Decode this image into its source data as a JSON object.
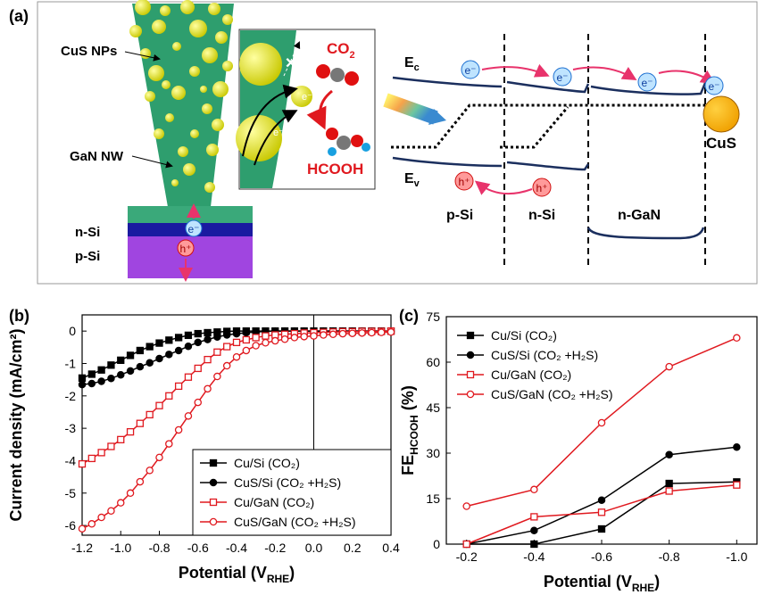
{
  "panel_a": {
    "label": "(a)",
    "nps": "CuS NPs",
    "nw": "GaN NW",
    "n_si": "n-Si",
    "p_si": "p-Si",
    "reactant": "CO",
    "reactant_sub": "2",
    "product": "HCOOH",
    "ec": "E",
    "ec_sub": "c",
    "ev": "E",
    "ev_sub": "v",
    "regions": [
      "p-Si",
      "n-Si",
      "n-GaN"
    ],
    "cocatalyst": "CuS",
    "electron": "e⁻",
    "hole": "h⁺"
  },
  "chart_data": [
    {
      "type": "line",
      "panel_label": "(b)",
      "xlabel": "Potential (V",
      "xlabel_sub": "RHE",
      "xlabel_end": ")",
      "ylabel": "Current density (mA/cm²)",
      "x": [
        -1.2,
        -1.15,
        -1.1,
        -1.05,
        -1.0,
        -0.95,
        -0.9,
        -0.85,
        -0.8,
        -0.75,
        -0.7,
        -0.65,
        -0.6,
        -0.55,
        -0.5,
        -0.45,
        -0.4,
        -0.35,
        -0.3,
        -0.25,
        -0.2,
        -0.15,
        -0.1,
        -0.05,
        0,
        0.05,
        0.1,
        0.15,
        0.2,
        0.25,
        0.3,
        0.35,
        0.4
      ],
      "xlim": [
        -1.2,
        0.4
      ],
      "xticks": [
        -1.2,
        {
          "value": -1,
          "label": "-1.0"
        },
        -0.8,
        -0.6,
        -0.4,
        -0.2,
        {
          "value": 0,
          "label": "0.0"
        },
        0.2,
        0.4
      ],
      "ylim": [
        -6.3,
        0.5
      ],
      "yticks": [
        -6,
        -5,
        -4,
        -3,
        -2,
        -1,
        0
      ],
      "vline": 0,
      "legend": "lower right",
      "legend_box": true,
      "series": [
        {
          "name": "Cu/Si (CO₂)",
          "color": "#000000",
          "marker": "square",
          "filled": true,
          "values": [
            -1.45,
            -1.33,
            -1.2,
            -1.05,
            -0.9,
            -0.75,
            -0.6,
            -0.48,
            -0.37,
            -0.28,
            -0.2,
            -0.13,
            -0.08,
            -0.05,
            -0.03,
            -0.01,
            0,
            0,
            0,
            0,
            0,
            0,
            0,
            0,
            0,
            0,
            0,
            0,
            0,
            0,
            0,
            0,
            0
          ]
        },
        {
          "name": "CuS/Si (CO₂ +H₂S)",
          "color": "#000000",
          "marker": "circle",
          "filled": true,
          "values": [
            -1.65,
            -1.62,
            -1.55,
            -1.46,
            -1.35,
            -1.23,
            -1.1,
            -0.98,
            -0.85,
            -0.72,
            -0.6,
            -0.47,
            -0.35,
            -0.26,
            -0.18,
            -0.12,
            -0.08,
            -0.05,
            -0.03,
            -0.01,
            0,
            0,
            0,
            0,
            0,
            0,
            0,
            0,
            0,
            0,
            0,
            0,
            0
          ]
        },
        {
          "name": "Cu/GaN (CO₂)",
          "color": "#e0191f",
          "marker": "square",
          "filled": false,
          "values": [
            -4.1,
            -3.93,
            -3.75,
            -3.56,
            -3.35,
            -3.11,
            -2.85,
            -2.58,
            -2.3,
            -2.0,
            -1.7,
            -1.42,
            -1.15,
            -0.88,
            -0.65,
            -0.48,
            -0.35,
            -0.27,
            -0.2,
            -0.15,
            -0.12,
            -0.1,
            -0.08,
            -0.06,
            -0.05,
            -0.04,
            -0.03,
            -0.02,
            -0.02,
            -0.01,
            -0.01,
            -0.01,
            0
          ]
        },
        {
          "name": "CuS/GaN (CO₂ +H₂S)",
          "color": "#e0191f",
          "marker": "circle",
          "filled": false,
          "values": [
            -6.1,
            -5.95,
            -5.75,
            -5.55,
            -5.3,
            -5.0,
            -4.65,
            -4.3,
            -3.9,
            -3.48,
            -3.05,
            -2.62,
            -2.2,
            -1.78,
            -1.4,
            -1.07,
            -0.8,
            -0.6,
            -0.45,
            -0.36,
            -0.3,
            -0.25,
            -0.2,
            -0.17,
            -0.15,
            -0.12,
            -0.1,
            -0.08,
            -0.07,
            -0.06,
            -0.05,
            -0.04,
            -0.03
          ]
        }
      ]
    },
    {
      "type": "line",
      "panel_label": "(c)",
      "xlabel": "Potential (V",
      "xlabel_sub": "RHE",
      "xlabel_end": ")",
      "ylabel": "FE",
      "ylabel_sub": "HCOOH",
      "ylabel_end": " (%)",
      "categories": [
        "-0.2",
        "-0.4",
        "-0.6",
        "-0.8",
        "-1.0"
      ],
      "ylim": [
        0,
        75
      ],
      "yticks": [
        0,
        15,
        30,
        45,
        60,
        75
      ],
      "legend": "upper left",
      "legend_box": false,
      "series": [
        {
          "name": "Cu/Si (CO₂)",
          "color": "#000000",
          "marker": "square",
          "filled": true,
          "values": [
            0,
            0,
            5,
            20,
            20.5
          ]
        },
        {
          "name": "CuS/Si (CO₂ +H₂S)",
          "color": "#000000",
          "marker": "circle",
          "filled": true,
          "values": [
            0,
            4.5,
            14.5,
            29.5,
            32
          ]
        },
        {
          "name": "Cu/GaN (CO₂)",
          "color": "#e0191f",
          "marker": "square",
          "filled": false,
          "values": [
            0,
            9,
            10.5,
            17.5,
            19.5
          ]
        },
        {
          "name": "CuS/GaN (CO₂ +H₂S)",
          "color": "#e0191f",
          "marker": "circle",
          "filled": false,
          "values": [
            12.5,
            18,
            40,
            58.5,
            68
          ]
        }
      ]
    }
  ]
}
